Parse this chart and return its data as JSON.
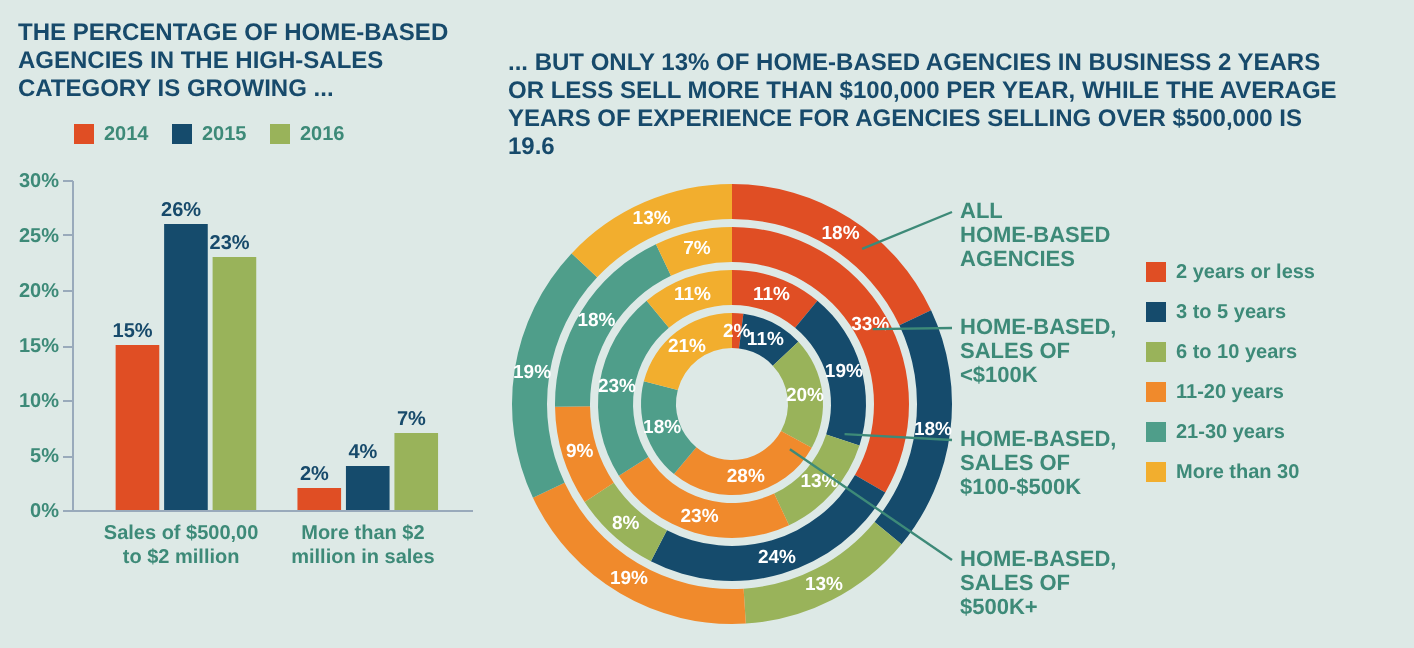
{
  "chart_data": [
    {
      "type": "bar",
      "title": "THE PERCENTAGE OF HOME-BASED AGENCIES IN THE HIGH-SALES CATEGORY IS GROWING ...",
      "categories": [
        "Sales of $500,00 to $2 million",
        "More than $2 million in sales"
      ],
      "series": [
        {
          "name": "2014",
          "color": "#e04e24",
          "values": [
            15,
            2
          ],
          "value_labels": [
            "15%",
            "2%"
          ]
        },
        {
          "name": "2015",
          "color": "#154b6c",
          "values": [
            26,
            4
          ],
          "value_labels": [
            "26%",
            "4%"
          ]
        },
        {
          "name": "2016",
          "color": "#99b35a",
          "values": [
            23,
            7
          ],
          "value_labels": [
            "23%",
            "7%"
          ]
        }
      ],
      "ylim": [
        0,
        30
      ],
      "yticks": [
        {
          "value": 0,
          "label": "0%"
        },
        {
          "value": 5,
          "label": "5%"
        },
        {
          "value": 10,
          "label": "10%"
        },
        {
          "value": 15,
          "label": "15%"
        },
        {
          "value": 20,
          "label": "20%"
        },
        {
          "value": 25,
          "label": "25%"
        },
        {
          "value": 30,
          "label": "30%"
        }
      ],
      "legend": "top",
      "grid": false
    },
    {
      "type": "donut",
      "title": "... BUT ONLY 13% OF HOME-BASED AGENCIES IN BUSINESS 2 YEARS OR LESS SELL MORE THAN $100,000 PER YEAR, WHILE THE AVERAGE YEARS OF EXPERIENCE FOR AGENCIES SELLING OVER $500,000 IS 19.6",
      "categories": [
        "2 years or less",
        "3 to 5 years",
        "6 to 10 years",
        "11-20 years",
        "21-30 years",
        "More than 30"
      ],
      "colors": [
        "#e04e24",
        "#154b6c",
        "#99b35a",
        "#f08a2c",
        "#4f9e8a",
        "#f2ae2e"
      ],
      "series": [
        {
          "name": "ALL HOME-BASED AGENCIES",
          "values": [
            18,
            18,
            13,
            19,
            19,
            13
          ],
          "value_labels": [
            "18%",
            "18%",
            "13%",
            "19%",
            "19%",
            "13%"
          ]
        },
        {
          "name": "HOME-BASED, SALES OF <$100K",
          "values": [
            33,
            24,
            8,
            9,
            18,
            7
          ],
          "value_labels": [
            "33%",
            "24%",
            "8%",
            "9%",
            "18%",
            "7%"
          ]
        },
        {
          "name": "HOME-BASED, SALES OF $100-$500K",
          "values": [
            11,
            19,
            13,
            23,
            23,
            11
          ],
          "value_labels": [
            "11%",
            "19%",
            "13%",
            "23%",
            "23%",
            "11%"
          ]
        },
        {
          "name": "HOME-BASED, SALES OF $500K+",
          "values": [
            2,
            11,
            20,
            28,
            18,
            21
          ],
          "value_labels": [
            "2%",
            "11%",
            "20%",
            "28%",
            "18%",
            "21%"
          ]
        }
      ],
      "legend": "right"
    }
  ]
}
